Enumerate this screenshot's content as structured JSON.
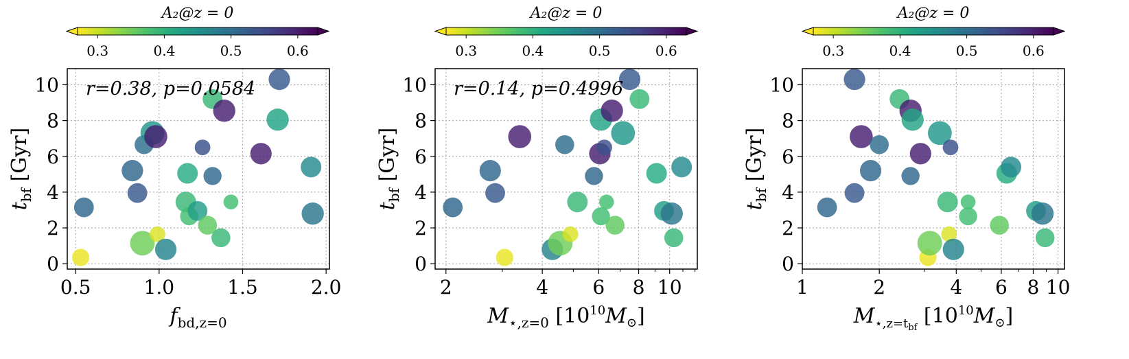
{
  "chart_data": [
    {
      "type": "scatter",
      "xscale": "linear",
      "xlim": [
        0.45,
        2.02
      ],
      "ylim": [
        -0.3,
        10.9
      ],
      "xticks": [
        0.5,
        1.0,
        1.5,
        2.0
      ],
      "xtick_labels": [
        "0.5",
        "1.0",
        "1.5",
        "2.0"
      ],
      "yticks": [
        0,
        2,
        4,
        6,
        8,
        10
      ],
      "ytick_labels": [
        "0",
        "2",
        "4",
        "6",
        "8",
        "10"
      ],
      "xlabel_main": "f",
      "xlabel_sub": "bd,z=0",
      "ylabel_main": "t",
      "ylabel_sub": "bf",
      "ylabel_unit": " [Gyr]",
      "annotation": "r=0.38, p=0.0584",
      "colorbar_title": "A₂@z = 0",
      "colorbar_ticks": [
        0.3,
        0.4,
        0.5,
        0.6
      ],
      "colorbar_tick_labels": [
        "0.3",
        "0.4",
        "0.5",
        "0.6"
      ],
      "colorbar_range": [
        0.27,
        0.63
      ],
      "points": [
        {
          "x": 0.53,
          "y": 0.35,
          "c": 0.28,
          "s": 0.55
        },
        {
          "x": 0.55,
          "y": 3.15,
          "c": 0.51,
          "s": 0.7
        },
        {
          "x": 0.84,
          "y": 5.2,
          "c": 0.51,
          "s": 0.8
        },
        {
          "x": 0.87,
          "y": 3.95,
          "c": 0.53,
          "s": 0.7
        },
        {
          "x": 0.91,
          "y": 6.65,
          "c": 0.5,
          "s": 0.65
        },
        {
          "x": 0.9,
          "y": 1.15,
          "c": 0.35,
          "s": 1.0
        },
        {
          "x": 0.96,
          "y": 7.3,
          "c": 0.44,
          "s": 0.95
        },
        {
          "x": 0.98,
          "y": 7.1,
          "c": 0.6,
          "s": 0.9
        },
        {
          "x": 0.99,
          "y": 1.65,
          "c": 0.29,
          "s": 0.45
        },
        {
          "x": 1.04,
          "y": 0.8,
          "c": 0.47,
          "s": 0.8
        },
        {
          "x": 1.16,
          "y": 3.45,
          "c": 0.39,
          "s": 0.75
        },
        {
          "x": 1.17,
          "y": 5.05,
          "c": 0.41,
          "s": 0.75
        },
        {
          "x": 1.18,
          "y": 2.65,
          "c": 0.38,
          "s": 0.6
        },
        {
          "x": 1.23,
          "y": 2.95,
          "c": 0.43,
          "s": 0.7
        },
        {
          "x": 1.26,
          "y": 6.5,
          "c": 0.54,
          "s": 0.45
        },
        {
          "x": 1.29,
          "y": 2.15,
          "c": 0.36,
          "s": 0.65
        },
        {
          "x": 1.32,
          "y": 4.9,
          "c": 0.51,
          "s": 0.6
        },
        {
          "x": 1.32,
          "y": 9.2,
          "c": 0.39,
          "s": 0.7
        },
        {
          "x": 1.37,
          "y": 1.45,
          "c": 0.39,
          "s": 0.65
        },
        {
          "x": 1.39,
          "y": 8.55,
          "c": 0.6,
          "s": 0.85
        },
        {
          "x": 1.43,
          "y": 3.45,
          "c": 0.38,
          "s": 0.4
        },
        {
          "x": 1.61,
          "y": 6.15,
          "c": 0.6,
          "s": 0.8
        },
        {
          "x": 1.71,
          "y": 8.05,
          "c": 0.42,
          "s": 0.85
        },
        {
          "x": 1.72,
          "y": 10.3,
          "c": 0.53,
          "s": 0.8
        },
        {
          "x": 1.91,
          "y": 5.4,
          "c": 0.46,
          "s": 0.75
        },
        {
          "x": 1.92,
          "y": 2.8,
          "c": 0.49,
          "s": 0.85
        }
      ]
    },
    {
      "type": "scatter",
      "xscale": "log",
      "xlim": [
        1.85,
        12.2
      ],
      "ylim": [
        -0.3,
        10.9
      ],
      "xticks": [
        2,
        4,
        6,
        8,
        10
      ],
      "xtick_labels": [
        "2",
        "4",
        "6",
        "8",
        "10"
      ],
      "yticks": [
        0,
        2,
        4,
        6,
        8,
        10
      ],
      "ytick_labels": [
        "0",
        "2",
        "4",
        "6",
        "8",
        "10"
      ],
      "xlabel_main": "M",
      "xlabel_sub": "⋆,z=0",
      "xlabel_unit": " [10",
      "xlabel_exp": "10",
      "xlabel_unit2": "M",
      "xlabel_sun": "⊙",
      "xlabel_close": "]",
      "ylabel_main": "t",
      "ylabel_sub": "bf",
      "ylabel_unit": " [Gyr]",
      "annotation": "r=0.14, p=0.4996",
      "colorbar_title": "A₂@z = 0",
      "colorbar_ticks": [
        0.3,
        0.4,
        0.5,
        0.6
      ],
      "colorbar_tick_labels": [
        "0.3",
        "0.4",
        "0.5",
        "0.6"
      ],
      "colorbar_range": [
        0.27,
        0.63
      ],
      "points": [
        {
          "x": 2.1,
          "y": 3.15,
          "c": 0.51,
          "s": 0.7
        },
        {
          "x": 2.75,
          "y": 5.2,
          "c": 0.51,
          "s": 0.8
        },
        {
          "x": 2.85,
          "y": 3.95,
          "c": 0.53,
          "s": 0.7
        },
        {
          "x": 3.05,
          "y": 0.35,
          "c": 0.28,
          "s": 0.55
        },
        {
          "x": 3.4,
          "y": 7.1,
          "c": 0.6,
          "s": 0.9
        },
        {
          "x": 4.3,
          "y": 0.8,
          "c": 0.47,
          "s": 0.8
        },
        {
          "x": 4.55,
          "y": 1.15,
          "c": 0.35,
          "s": 1.0
        },
        {
          "x": 4.7,
          "y": 6.65,
          "c": 0.5,
          "s": 0.65
        },
        {
          "x": 4.9,
          "y": 1.65,
          "c": 0.29,
          "s": 0.45
        },
        {
          "x": 5.15,
          "y": 3.45,
          "c": 0.39,
          "s": 0.75
        },
        {
          "x": 5.8,
          "y": 4.9,
          "c": 0.51,
          "s": 0.6
        },
        {
          "x": 6.1,
          "y": 8.05,
          "c": 0.42,
          "s": 0.85
        },
        {
          "x": 6.05,
          "y": 6.15,
          "c": 0.6,
          "s": 0.8
        },
        {
          "x": 6.1,
          "y": 2.65,
          "c": 0.38,
          "s": 0.6
        },
        {
          "x": 6.25,
          "y": 6.5,
          "c": 0.54,
          "s": 0.45
        },
        {
          "x": 6.35,
          "y": 3.45,
          "c": 0.38,
          "s": 0.4
        },
        {
          "x": 6.6,
          "y": 8.55,
          "c": 0.6,
          "s": 0.85
        },
        {
          "x": 6.75,
          "y": 2.15,
          "c": 0.36,
          "s": 0.65
        },
        {
          "x": 7.15,
          "y": 7.3,
          "c": 0.44,
          "s": 0.95
        },
        {
          "x": 7.5,
          "y": 10.3,
          "c": 0.53,
          "s": 0.8
        },
        {
          "x": 8.05,
          "y": 9.2,
          "c": 0.39,
          "s": 0.7
        },
        {
          "x": 9.1,
          "y": 5.05,
          "c": 0.41,
          "s": 0.75
        },
        {
          "x": 9.6,
          "y": 2.95,
          "c": 0.43,
          "s": 0.7
        },
        {
          "x": 10.15,
          "y": 2.8,
          "c": 0.49,
          "s": 0.85
        },
        {
          "x": 10.3,
          "y": 1.45,
          "c": 0.39,
          "s": 0.65
        },
        {
          "x": 10.9,
          "y": 5.4,
          "c": 0.46,
          "s": 0.75
        }
      ]
    },
    {
      "type": "scatter",
      "xscale": "log",
      "xlim": [
        1.0,
        10.6
      ],
      "ylim": [
        -0.3,
        10.9
      ],
      "xticks": [
        1,
        2,
        4,
        6,
        8,
        10
      ],
      "xtick_labels": [
        "1",
        "2",
        "4",
        "6",
        "8",
        "10"
      ],
      "yticks": [
        0,
        2,
        4,
        6,
        8,
        10
      ],
      "ytick_labels": [
        "0",
        "2",
        "4",
        "6",
        "8",
        "10"
      ],
      "xlabel_main": "M",
      "xlabel_sub": "⋆,z=t",
      "xlabel_subsub": "bf",
      "xlabel_unit": " [10",
      "xlabel_exp": "10",
      "xlabel_unit2": "M",
      "xlabel_sun": "⊙",
      "xlabel_close": "]",
      "ylabel_main": "t",
      "ylabel_sub": "bf",
      "ylabel_unit": " [Gyr]",
      "annotation": "",
      "colorbar_title": "A₂@z = 0",
      "colorbar_ticks": [
        0.3,
        0.4,
        0.5,
        0.6
      ],
      "colorbar_tick_labels": [
        "0.3",
        "0.4",
        "0.5",
        "0.6"
      ],
      "colorbar_range": [
        0.27,
        0.63
      ],
      "points": [
        {
          "x": 1.25,
          "y": 3.15,
          "c": 0.51,
          "s": 0.7
        },
        {
          "x": 1.6,
          "y": 10.3,
          "c": 0.53,
          "s": 0.8
        },
        {
          "x": 1.6,
          "y": 3.95,
          "c": 0.53,
          "s": 0.7
        },
        {
          "x": 1.7,
          "y": 7.1,
          "c": 0.6,
          "s": 0.9
        },
        {
          "x": 1.85,
          "y": 5.2,
          "c": 0.51,
          "s": 0.8
        },
        {
          "x": 2.0,
          "y": 6.65,
          "c": 0.5,
          "s": 0.65
        },
        {
          "x": 2.4,
          "y": 9.2,
          "c": 0.39,
          "s": 0.7
        },
        {
          "x": 2.65,
          "y": 8.55,
          "c": 0.6,
          "s": 0.85
        },
        {
          "x": 2.7,
          "y": 8.05,
          "c": 0.42,
          "s": 0.85
        },
        {
          "x": 2.65,
          "y": 4.9,
          "c": 0.51,
          "s": 0.6
        },
        {
          "x": 2.9,
          "y": 6.15,
          "c": 0.6,
          "s": 0.8
        },
        {
          "x": 3.1,
          "y": 0.35,
          "c": 0.28,
          "s": 0.55
        },
        {
          "x": 3.15,
          "y": 1.15,
          "c": 0.35,
          "s": 1.0
        },
        {
          "x": 3.45,
          "y": 7.3,
          "c": 0.44,
          "s": 0.95
        },
        {
          "x": 3.7,
          "y": 3.45,
          "c": 0.39,
          "s": 0.75
        },
        {
          "x": 3.75,
          "y": 1.65,
          "c": 0.29,
          "s": 0.45
        },
        {
          "x": 3.8,
          "y": 6.5,
          "c": 0.54,
          "s": 0.45
        },
        {
          "x": 3.9,
          "y": 0.8,
          "c": 0.47,
          "s": 0.8
        },
        {
          "x": 4.45,
          "y": 3.45,
          "c": 0.38,
          "s": 0.4
        },
        {
          "x": 4.45,
          "y": 2.65,
          "c": 0.38,
          "s": 0.6
        },
        {
          "x": 5.9,
          "y": 2.15,
          "c": 0.36,
          "s": 0.65
        },
        {
          "x": 6.3,
          "y": 5.05,
          "c": 0.41,
          "s": 0.75
        },
        {
          "x": 6.55,
          "y": 5.4,
          "c": 0.46,
          "s": 0.75
        },
        {
          "x": 8.2,
          "y": 2.95,
          "c": 0.43,
          "s": 0.7
        },
        {
          "x": 8.7,
          "y": 2.8,
          "c": 0.49,
          "s": 0.85
        },
        {
          "x": 8.9,
          "y": 1.45,
          "c": 0.39,
          "s": 0.65
        }
      ]
    }
  ]
}
